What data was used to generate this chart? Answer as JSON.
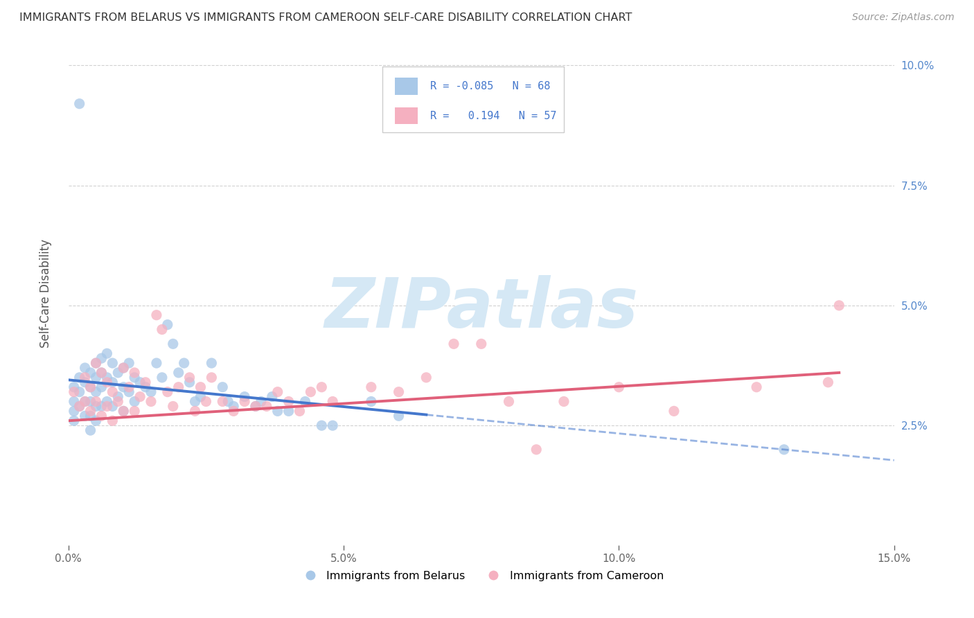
{
  "title": "IMMIGRANTS FROM BELARUS VS IMMIGRANTS FROM CAMEROON SELF-CARE DISABILITY CORRELATION CHART",
  "source": "Source: ZipAtlas.com",
  "ylabel_label": "Self-Care Disability",
  "xlim": [
    0.0,
    0.15
  ],
  "ylim": [
    0.0,
    0.105
  ],
  "xticks": [
    0.0,
    0.05,
    0.1,
    0.15
  ],
  "ytick_vals": [
    0.025,
    0.05,
    0.075,
    0.1
  ],
  "ytick_labels_right": [
    "2.5%",
    "5.0%",
    "7.5%",
    "10.0%"
  ],
  "xtick_labels": [
    "0.0%",
    "5.0%",
    "10.0%",
    "15.0%"
  ],
  "belarus_color": "#a8c8e8",
  "cameroon_color": "#f5b0c0",
  "belarus_line_color": "#4477cc",
  "cameroon_line_color": "#e0607a",
  "belarus_R": -0.085,
  "belarus_N": 68,
  "cameroon_R": 0.194,
  "cameroon_N": 57,
  "watermark": "ZIPatlas",
  "watermark_color": "#d5e8f5",
  "background_color": "#ffffff",
  "grid_color": "#cccccc",
  "belarus_x": [
    0.001,
    0.001,
    0.001,
    0.001,
    0.002,
    0.002,
    0.002,
    0.003,
    0.003,
    0.003,
    0.003,
    0.004,
    0.004,
    0.004,
    0.004,
    0.004,
    0.005,
    0.005,
    0.005,
    0.005,
    0.005,
    0.006,
    0.006,
    0.006,
    0.006,
    0.007,
    0.007,
    0.007,
    0.008,
    0.008,
    0.008,
    0.009,
    0.009,
    0.01,
    0.01,
    0.01,
    0.011,
    0.011,
    0.012,
    0.012,
    0.013,
    0.014,
    0.015,
    0.016,
    0.017,
    0.018,
    0.019,
    0.02,
    0.021,
    0.022,
    0.023,
    0.024,
    0.026,
    0.028,
    0.029,
    0.03,
    0.032,
    0.034,
    0.035,
    0.037,
    0.038,
    0.04,
    0.043,
    0.046,
    0.048,
    0.055,
    0.06,
    0.13
  ],
  "belarus_y": [
    0.033,
    0.03,
    0.028,
    0.026,
    0.035,
    0.032,
    0.029,
    0.037,
    0.034,
    0.03,
    0.027,
    0.036,
    0.033,
    0.03,
    0.027,
    0.024,
    0.038,
    0.035,
    0.032,
    0.029,
    0.026,
    0.039,
    0.036,
    0.033,
    0.029,
    0.04,
    0.035,
    0.03,
    0.038,
    0.034,
    0.029,
    0.036,
    0.031,
    0.037,
    0.033,
    0.028,
    0.038,
    0.032,
    0.035,
    0.03,
    0.034,
    0.033,
    0.032,
    0.038,
    0.035,
    0.046,
    0.042,
    0.036,
    0.038,
    0.034,
    0.03,
    0.031,
    0.038,
    0.033,
    0.03,
    0.029,
    0.031,
    0.029,
    0.03,
    0.031,
    0.028,
    0.028,
    0.03,
    0.025,
    0.025,
    0.03,
    0.027,
    0.02
  ],
  "belarus_y_outliers": [
    [
      0.002,
      0.092
    ]
  ],
  "cameroon_x": [
    0.001,
    0.002,
    0.003,
    0.003,
    0.004,
    0.004,
    0.005,
    0.005,
    0.006,
    0.006,
    0.007,
    0.007,
    0.008,
    0.008,
    0.009,
    0.01,
    0.01,
    0.011,
    0.012,
    0.012,
    0.013,
    0.014,
    0.015,
    0.016,
    0.017,
    0.018,
    0.019,
    0.02,
    0.022,
    0.023,
    0.024,
    0.025,
    0.026,
    0.028,
    0.03,
    0.032,
    0.034,
    0.036,
    0.038,
    0.04,
    0.042,
    0.044,
    0.046,
    0.048,
    0.055,
    0.06,
    0.065,
    0.07,
    0.075,
    0.08,
    0.085,
    0.09,
    0.1,
    0.11,
    0.125,
    0.138,
    0.14
  ],
  "cameroon_y": [
    0.032,
    0.029,
    0.035,
    0.03,
    0.033,
    0.028,
    0.038,
    0.03,
    0.036,
    0.027,
    0.034,
    0.029,
    0.032,
    0.026,
    0.03,
    0.037,
    0.028,
    0.033,
    0.036,
    0.028,
    0.031,
    0.034,
    0.03,
    0.048,
    0.045,
    0.032,
    0.029,
    0.033,
    0.035,
    0.028,
    0.033,
    0.03,
    0.035,
    0.03,
    0.028,
    0.03,
    0.029,
    0.029,
    0.032,
    0.03,
    0.028,
    0.032,
    0.033,
    0.03,
    0.033,
    0.032,
    0.035,
    0.042,
    0.042,
    0.03,
    0.02,
    0.03,
    0.033,
    0.028,
    0.033,
    0.034,
    0.05
  ]
}
